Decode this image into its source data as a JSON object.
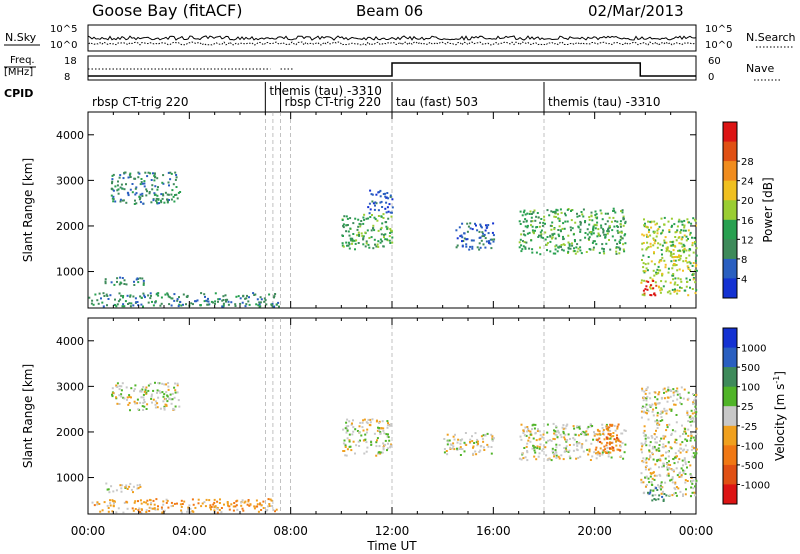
{
  "header": {
    "station": "Goose Bay (fitACF)",
    "beam": "Beam 06",
    "date": "02/Mar/2013"
  },
  "noise_panel": {
    "left_label": "N.Sky",
    "left_ticks": [
      "10^5",
      "10^0"
    ],
    "right_label": "N.Search",
    "right_ticks": [
      "10^5",
      "10^0"
    ]
  },
  "freq_panel": {
    "left_label_1": "Freq.",
    "left_label_2": "[MHz]",
    "left_ticks": [
      "18",
      "8"
    ],
    "right_label": "Nave",
    "right_ticks": [
      "60",
      "0"
    ],
    "cpid_label": "CPID"
  },
  "cpid_segments": [
    {
      "label": "rbsp CT-trig 220",
      "start_hour": 0.0
    },
    {
      "label": "themis (tau) -3310",
      "start_hour": 7.0
    },
    {
      "label": "rbsp CT-trig 220",
      "start_hour": 7.6
    },
    {
      "label": "tau (fast) 503",
      "start_hour": 12.0
    },
    {
      "label": "themis (tau) -3310",
      "start_hour": 18.0
    }
  ],
  "time_axis": {
    "label": "Time UT",
    "ticks": [
      "00:00",
      "04:00",
      "08:00",
      "12:00",
      "16:00",
      "20:00",
      "00:00"
    ]
  },
  "chart_data": [
    {
      "type": "heatmap",
      "name": "power",
      "ylabel": "Slant Range [km]",
      "yticks": [
        "1000",
        "2000",
        "3000",
        "4000"
      ],
      "ylim": [
        200,
        4500
      ],
      "xlim_hours": [
        0,
        24
      ],
      "colorbar": {
        "label": "Power [dB]",
        "tick_labels": [
          "4",
          "8",
          "12",
          "16",
          "20",
          "24",
          "28"
        ],
        "colors": [
          "#1432d2",
          "#2a5fc0",
          "#3e8a5a",
          "#28a050",
          "#9acd32",
          "#f0c020",
          "#f08c1e",
          "#e05014",
          "#dc1414"
        ]
      },
      "regions": [
        {
          "t0": 0.9,
          "t1": 3.6,
          "r0": 2500,
          "r1": 3200,
          "level": 2
        },
        {
          "t0": 0.6,
          "t1": 2.2,
          "r0": 700,
          "r1": 900,
          "level": 2
        },
        {
          "t0": 0.0,
          "t1": 7.5,
          "r0": 250,
          "r1": 550,
          "level": 2
        },
        {
          "t0": 10.0,
          "t1": 12.0,
          "r0": 1500,
          "r1": 2300,
          "level": 3
        },
        {
          "t0": 11.0,
          "t1": 12.0,
          "r0": 2300,
          "r1": 2800,
          "level": 1
        },
        {
          "t0": 14.5,
          "t1": 16.0,
          "r0": 1500,
          "r1": 2100,
          "level": 1
        },
        {
          "t0": 17.0,
          "t1": 21.2,
          "r0": 1400,
          "r1": 2400,
          "level": 3
        },
        {
          "t0": 21.8,
          "t1": 24.0,
          "r0": 500,
          "r1": 2200,
          "level": 4
        },
        {
          "t0": 21.9,
          "t1": 22.4,
          "r0": 500,
          "r1": 900,
          "level": 8
        }
      ]
    },
    {
      "type": "heatmap",
      "name": "velocity",
      "ylabel": "Slant Range [km]",
      "yticks": [
        "1000",
        "2000",
        "3000",
        "4000"
      ],
      "ylim": [
        200,
        4500
      ],
      "xlim_hours": [
        0,
        24
      ],
      "colorbar": {
        "label_main": "Velocity",
        "label_unit": "[m s",
        "label_exp": "-1",
        "label_close": "]",
        "tick_labels": [
          "1000",
          "500",
          "100",
          "25",
          "-25",
          "-100",
          "-500",
          "-1000"
        ],
        "colors": [
          "#1432d2",
          "#2a5fc0",
          "#3e8a5a",
          "#50b428",
          "#c8c8c8",
          "#f0a01e",
          "#f07814",
          "#e05014",
          "#dc1414"
        ]
      },
      "regions": [
        {
          "t0": 0.9,
          "t1": 3.6,
          "r0": 2500,
          "r1": 3100,
          "level": 4
        },
        {
          "t0": 0.6,
          "t1": 2.2,
          "r0": 700,
          "r1": 900,
          "level": 4
        },
        {
          "t0": 0.0,
          "t1": 7.5,
          "r0": 250,
          "r1": 550,
          "level": 5
        },
        {
          "t0": 10.0,
          "t1": 12.0,
          "r0": 1500,
          "r1": 2300,
          "level": 4
        },
        {
          "t0": 14.0,
          "t1": 16.0,
          "r0": 1500,
          "r1": 2000,
          "level": 4
        },
        {
          "t0": 17.0,
          "t1": 21.2,
          "r0": 1400,
          "r1": 2200,
          "level": 4
        },
        {
          "t0": 20.0,
          "t1": 21.0,
          "r0": 1500,
          "r1": 2200,
          "level": 6
        },
        {
          "t0": 21.8,
          "t1": 24.0,
          "r0": 600,
          "r1": 3000,
          "level": 4
        },
        {
          "t0": 22.0,
          "t1": 22.8,
          "r0": 500,
          "r1": 800,
          "level": 2
        }
      ]
    }
  ]
}
